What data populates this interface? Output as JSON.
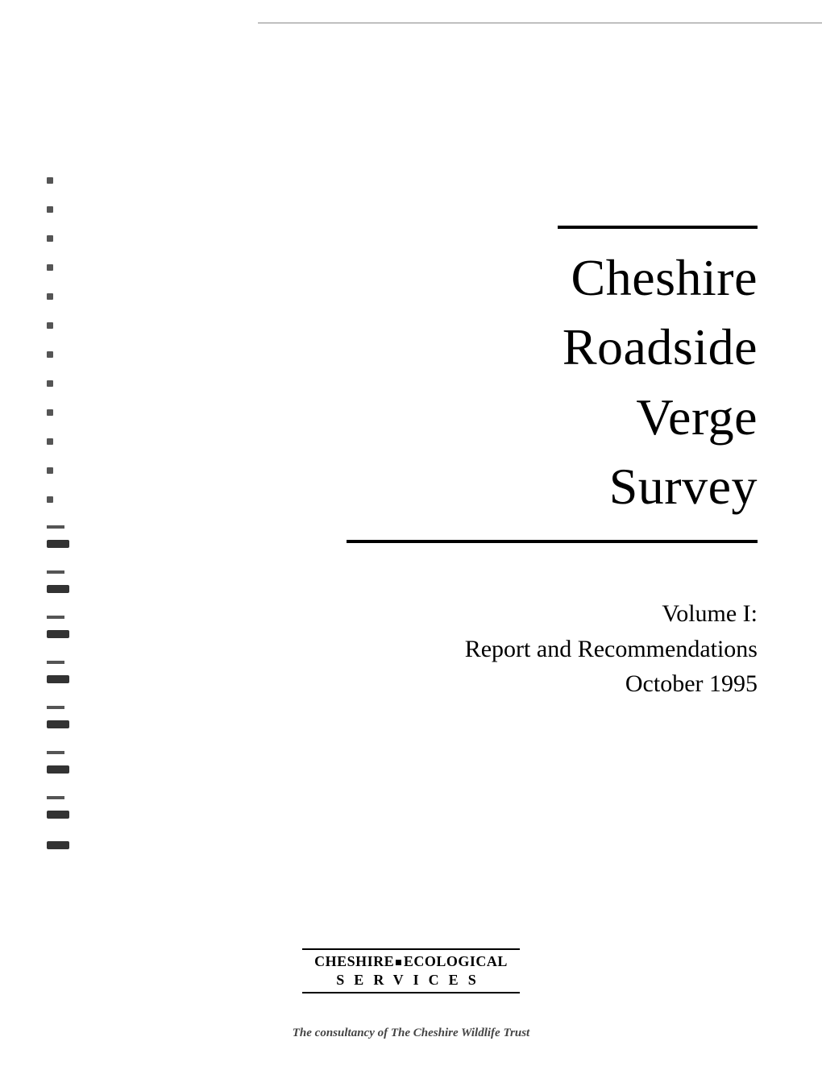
{
  "title": {
    "line1": "Cheshire",
    "line2": "Roadside",
    "line3": "Verge",
    "line4": "Survey",
    "rule_color": "#000000",
    "font_size": 64
  },
  "subtitle": {
    "line1": "Volume I:",
    "line2": "Report and Recommendations",
    "line3": "October  1995",
    "font_size": 30
  },
  "organisation": {
    "line1_pre": "CHESHIRE",
    "line1_post": "ECOLOGICAL",
    "line2": "SERVICES",
    "rule_color": "#000000"
  },
  "tagline": "The consultancy of The Cheshire Wildlife Trust",
  "colors": {
    "background": "#ffffff",
    "text": "#000000"
  }
}
